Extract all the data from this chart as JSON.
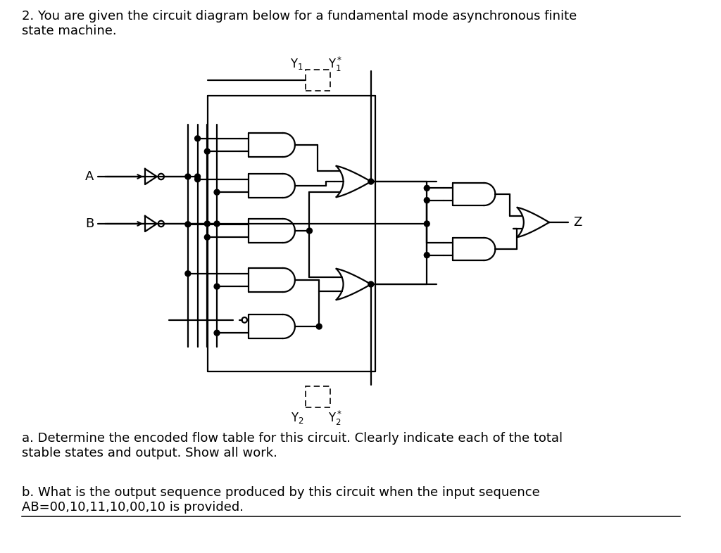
{
  "bg_color": "#ffffff",
  "text_color": "#000000",
  "line_color": "#000000",
  "title_text": "2. You are given the circuit diagram below for a fundamental mode asynchronous finite\nstate machine.",
  "title_fontsize": 13,
  "question_a": "a. Determine the encoded flow table for this circuit. Clearly indicate each of the total\nstable states and output. Show all work.",
  "question_b": "b. What is the output sequence produced by this circuit when the input sequence\nAB=00,10,11,10,00,10 is provided.",
  "question_fontsize": 13
}
